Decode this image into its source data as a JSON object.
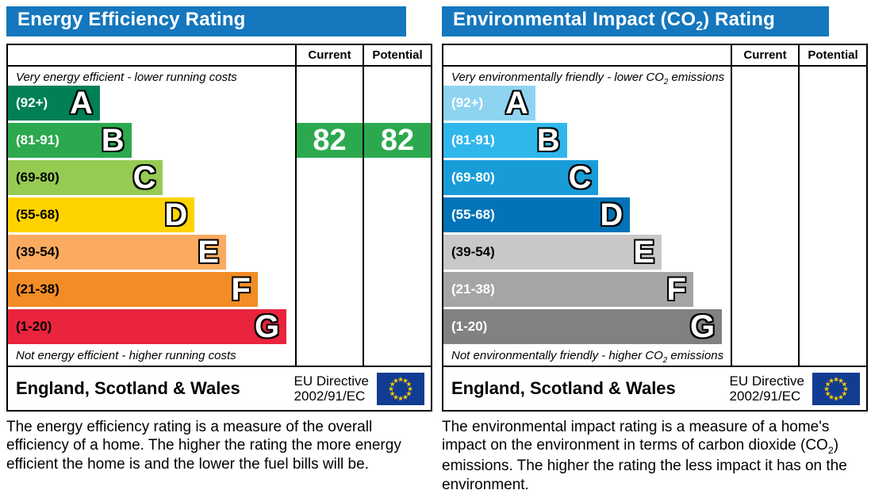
{
  "theme": {
    "header_blue": "#1577bd",
    "border_black": "#000000"
  },
  "chart_data": [
    {
      "type": "bar",
      "title": "Energy Efficiency Rating",
      "categories": [
        "A (92+)",
        "B (81-91)",
        "C (69-80)",
        "D (55-68)",
        "E (39-54)",
        "F (21-38)",
        "G (1-20)"
      ],
      "bar_lengths_pct": [
        32,
        43,
        54,
        65,
        76,
        87,
        97
      ],
      "current": 82,
      "potential": 82,
      "current_band": "B",
      "potential_band": "B",
      "legend": [
        "Current",
        "Potential"
      ]
    },
    {
      "type": "bar",
      "title": "Environmental Impact (CO2) Rating",
      "categories": [
        "A (92+)",
        "B (81-91)",
        "C (69-80)",
        "D (55-68)",
        "E (39-54)",
        "F (21-38)",
        "G (1-20)"
      ],
      "bar_lengths_pct": [
        32,
        43,
        54,
        65,
        76,
        87,
        97
      ],
      "current": null,
      "potential": null,
      "legend": [
        "Current",
        "Potential"
      ]
    }
  ],
  "left_panel": {
    "title_pre": "Energy Efficiency Rating",
    "title_sub": "",
    "title_post": "",
    "header": {
      "current": "Current",
      "potential": "Potential"
    },
    "top_caption_pre": "Very energy efficient - lower running costs",
    "top_caption_sub": "",
    "top_caption_post": "",
    "bottom_caption_pre": "Not energy efficient - higher running costs",
    "bottom_caption_sub": "",
    "bottom_caption_post": "",
    "bands": [
      {
        "range": "(92+)",
        "letter": "A",
        "color": "#008054",
        "width_pct": 32,
        "range_color": "#ffffff"
      },
      {
        "range": "(81-91)",
        "letter": "B",
        "color": "#2ca94f",
        "width_pct": 43,
        "range_color": "#ffffff"
      },
      {
        "range": "(69-80)",
        "letter": "C",
        "color": "#95ca53",
        "width_pct": 54,
        "range_color": "#000000"
      },
      {
        "range": "(55-68)",
        "letter": "D",
        "color": "#fed300",
        "width_pct": 65,
        "range_color": "#000000"
      },
      {
        "range": "(39-54)",
        "letter": "E",
        "color": "#fbab60",
        "width_pct": 76,
        "range_color": "#000000"
      },
      {
        "range": "(21-38)",
        "letter": "F",
        "color": "#f28c26",
        "width_pct": 87,
        "range_color": "#000000"
      },
      {
        "range": "(1-20)",
        "letter": "G",
        "color": "#e9243c",
        "width_pct": 97,
        "range_color": "#000000"
      }
    ],
    "ratings": {
      "current": "82",
      "potential": "82",
      "band_index": 1,
      "color": "#2ca94f",
      "text_color": "#ffffff"
    },
    "footer": {
      "region": "England, Scotland & Wales",
      "directive_line1": "EU Directive",
      "directive_line2": "2002/91/EC",
      "flag_bg": "#123c91",
      "flag_star": "#ffcc00"
    },
    "description_pre": "The energy efficiency rating is a measure of the overall efficiency of a home. The higher the rating the more energy efficient the home is and the lower the fuel bills will be.",
    "description_sub": "",
    "description_post": ""
  },
  "right_panel": {
    "title_pre": "Environmental Impact (CO",
    "title_sub": "2",
    "title_post": ") Rating",
    "header": {
      "current": "Current",
      "potential": "Potential"
    },
    "top_caption_pre": "Very environmentally friendly - lower CO",
    "top_caption_sub": "2",
    "top_caption_post": " emissions",
    "bottom_caption_pre": "Not environmentally friendly - higher CO",
    "bottom_caption_sub": "2",
    "bottom_caption_post": " emissions",
    "bands": [
      {
        "range": "(92+)",
        "letter": "A",
        "color": "#8ed4f0",
        "width_pct": 32,
        "range_color": "#ffffff"
      },
      {
        "range": "(81-91)",
        "letter": "B",
        "color": "#2fb7ec",
        "width_pct": 43,
        "range_color": "#ffffff"
      },
      {
        "range": "(69-80)",
        "letter": "C",
        "color": "#189cd8",
        "width_pct": 54,
        "range_color": "#ffffff"
      },
      {
        "range": "(55-68)",
        "letter": "D",
        "color": "#0273b8",
        "width_pct": 65,
        "range_color": "#ffffff"
      },
      {
        "range": "(39-54)",
        "letter": "E",
        "color": "#c8c8c8",
        "width_pct": 76,
        "range_color": "#000000"
      },
      {
        "range": "(21-38)",
        "letter": "F",
        "color": "#a5a5a5",
        "width_pct": 87,
        "range_color": "#ffffff"
      },
      {
        "range": "(1-20)",
        "letter": "G",
        "color": "#818181",
        "width_pct": 97,
        "range_color": "#ffffff"
      }
    ],
    "ratings": {
      "current": "",
      "potential": "",
      "band_index": 1,
      "color": "",
      "text_color": ""
    },
    "footer": {
      "region": "England, Scotland & Wales",
      "directive_line1": "EU Directive",
      "directive_line2": "2002/91/EC",
      "flag_bg": "#123c91",
      "flag_star": "#ffcc00"
    },
    "description_pre": "The environmental impact rating is a measure of a home's impact on the environment in terms of carbon dioxide (CO",
    "description_sub": "2",
    "description_post": ") emissions. The higher the rating the less impact it has on the environment."
  }
}
